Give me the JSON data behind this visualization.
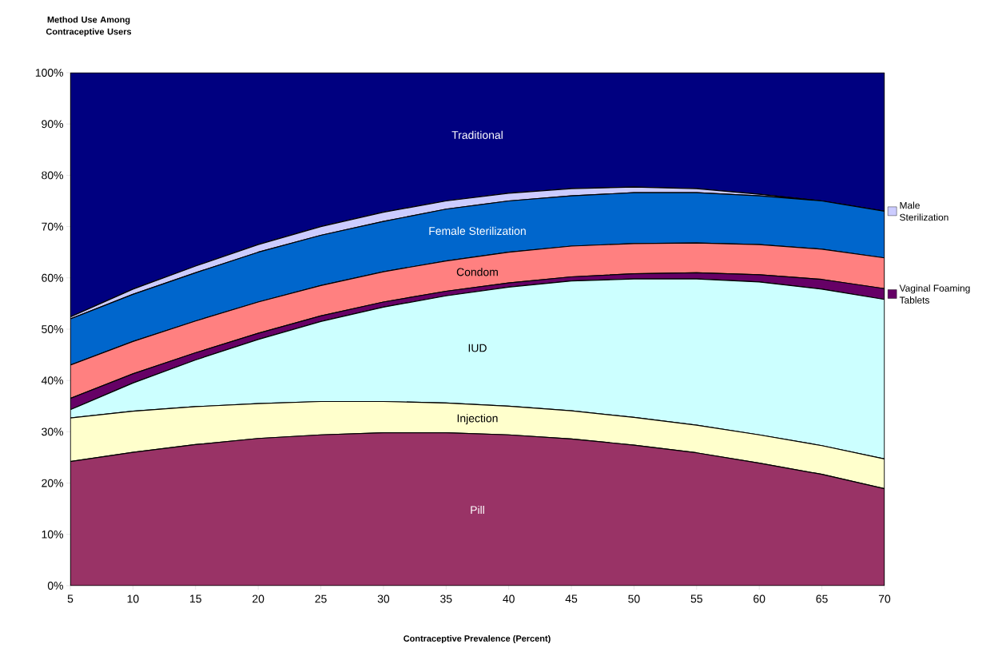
{
  "chart_data": {
    "type": "area",
    "stacked": true,
    "ylabel": "Method Use Among Contraceptive Users",
    "xlabel": "Contraceptive Prevalence (Percent)",
    "x": [
      5,
      10,
      15,
      20,
      25,
      30,
      35,
      40,
      45,
      50,
      55,
      60,
      65,
      70
    ],
    "xlim": [
      5,
      70
    ],
    "xticks": [
      5,
      10,
      15,
      20,
      25,
      30,
      35,
      40,
      45,
      50,
      55,
      60,
      65,
      70
    ],
    "ylim": [
      0,
      100
    ],
    "yticks": [
      {
        "value": 0,
        "label": "0%"
      },
      {
        "value": 10,
        "label": "10%"
      },
      {
        "value": 20,
        "label": "20%"
      },
      {
        "value": 30,
        "label": "30%"
      },
      {
        "value": 40,
        "label": "40%"
      },
      {
        "value": 50,
        "label": "50%"
      },
      {
        "value": 60,
        "label": "60%"
      },
      {
        "value": 70,
        "label": "70%"
      },
      {
        "value": 80,
        "label": "80%"
      },
      {
        "value": 90,
        "label": "90%"
      },
      {
        "value": 100,
        "label": "100%"
      }
    ],
    "grid": false,
    "legend": "right",
    "series": [
      {
        "name": "Pill",
        "color": "#993366",
        "values": [
          24.2,
          26.0,
          27.5,
          28.7,
          29.4,
          29.8,
          29.8,
          29.4,
          28.6,
          27.4,
          25.9,
          23.9,
          21.7,
          18.9
        ]
      },
      {
        "name": "Injection",
        "color": "#ffffcc",
        "values": [
          8.5,
          8.0,
          7.4,
          6.8,
          6.5,
          6.1,
          5.8,
          5.6,
          5.5,
          5.4,
          5.4,
          5.5,
          5.6,
          5.8
        ]
      },
      {
        "name": "IUD",
        "color": "#ccffff",
        "values": [
          1.6,
          5.5,
          9.1,
          12.5,
          15.6,
          18.4,
          20.9,
          23.2,
          25.3,
          27.0,
          28.5,
          29.8,
          30.5,
          31.1
        ]
      },
      {
        "name": "Vaginal Foaming Tablets",
        "color": "#660066",
        "values": [
          2.2,
          1.8,
          1.4,
          1.2,
          1.1,
          1.0,
          0.9,
          0.8,
          0.8,
          1.0,
          1.2,
          1.4,
          1.9,
          2.1
        ]
      },
      {
        "name": "Condom",
        "color": "#ff8080",
        "values": [
          6.5,
          6.3,
          6.2,
          6.1,
          5.9,
          5.9,
          5.9,
          6.0,
          6.0,
          5.9,
          5.8,
          5.9,
          5.9,
          6.0
        ]
      },
      {
        "name": "Female Sterilization",
        "color": "#0066cc",
        "values": [
          9.0,
          9.2,
          9.4,
          9.7,
          9.8,
          9.8,
          10.1,
          10.0,
          9.8,
          9.9,
          9.8,
          9.5,
          9.4,
          9.1
        ]
      },
      {
        "name": "Male Sterilization",
        "color": "#ccccff",
        "values": [
          0.4,
          1.0,
          1.3,
          1.5,
          1.7,
          1.8,
          1.6,
          1.5,
          1.4,
          1.1,
          0.8,
          0.3,
          0.0,
          0.0
        ]
      },
      {
        "name": "Traditional",
        "color": "#000080",
        "values": [
          47.6,
          42.2,
          37.7,
          33.5,
          30.0,
          27.2,
          25.0,
          23.5,
          22.6,
          22.3,
          22.6,
          23.7,
          25.0,
          27.0
        ]
      }
    ]
  }
}
